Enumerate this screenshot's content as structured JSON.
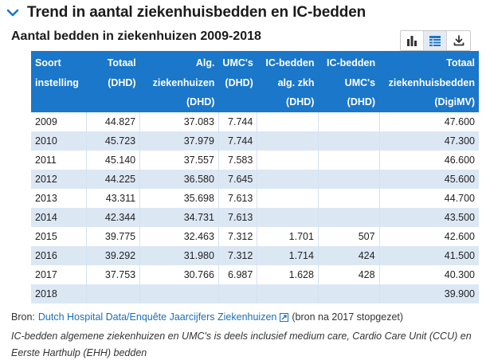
{
  "section": {
    "title": "Trend in aantal ziekenhuisbedden en IC-bedden"
  },
  "chart": {
    "title": "Aantal bedden in ziekenhuizen 2009-2018"
  },
  "toolbar": {
    "icons": [
      "bar-chart-icon",
      "table-icon",
      "download-icon"
    ],
    "active": "table-icon"
  },
  "table": {
    "headers": [
      [
        "Soort",
        "instelling"
      ],
      [
        "Totaal",
        "(DHD)"
      ],
      [
        "Alg.",
        "ziekenhuizen",
        "(DHD)"
      ],
      [
        "UMC's",
        "(DHD)"
      ],
      [
        "IC-bedden",
        "alg. zkh",
        "(DHD)"
      ],
      [
        "IC-bedden",
        "UMC's",
        "(DHD)"
      ],
      [
        "Totaal",
        "ziekenhuisbedden",
        "(DigiMV)"
      ]
    ],
    "rows": [
      [
        "2009",
        "44.827",
        "37.083",
        "7.744",
        "",
        "",
        "47.600"
      ],
      [
        "2010",
        "45.723",
        "37.979",
        "7.744",
        "",
        "",
        "47.300"
      ],
      [
        "2011",
        "45.140",
        "37.557",
        "7.583",
        "",
        "",
        "46.600"
      ],
      [
        "2012",
        "44.225",
        "36.580",
        "7.645",
        "",
        "",
        "45.600"
      ],
      [
        "2013",
        "43.311",
        "35.698",
        "7.613",
        "",
        "",
        "44.700"
      ],
      [
        "2014",
        "42.344",
        "34.731",
        "7.613",
        "",
        "",
        "43.500"
      ],
      [
        "2015",
        "39.775",
        "32.463",
        "7.312",
        "1.701",
        "507",
        "42.600"
      ],
      [
        "2016",
        "39.292",
        "31.980",
        "7.312",
        "1.714",
        "424",
        "41.500"
      ],
      [
        "2017",
        "37.753",
        "30.766",
        "6.987",
        "1.628",
        "428",
        "40.300"
      ],
      [
        "2018",
        "",
        "",
        "",
        "",
        "",
        "39.900"
      ]
    ]
  },
  "source": {
    "prefix": "Bron:",
    "link": "Dutch Hospital Data/Enquête Jaarcijfers Ziekenhuizen",
    "suffix": "(bron na 2017 stopgezet)"
  },
  "note": "IC-bedden algemene ziekenhuizen en UMC's is deels inclusief medium care, Cardio Care Unit (CCU) en Eerste Harthulp (EHH) bedden",
  "colors": {
    "header_bg": "#1a77c9",
    "stripe": "#dce7f4",
    "link": "#1a6fb8"
  }
}
